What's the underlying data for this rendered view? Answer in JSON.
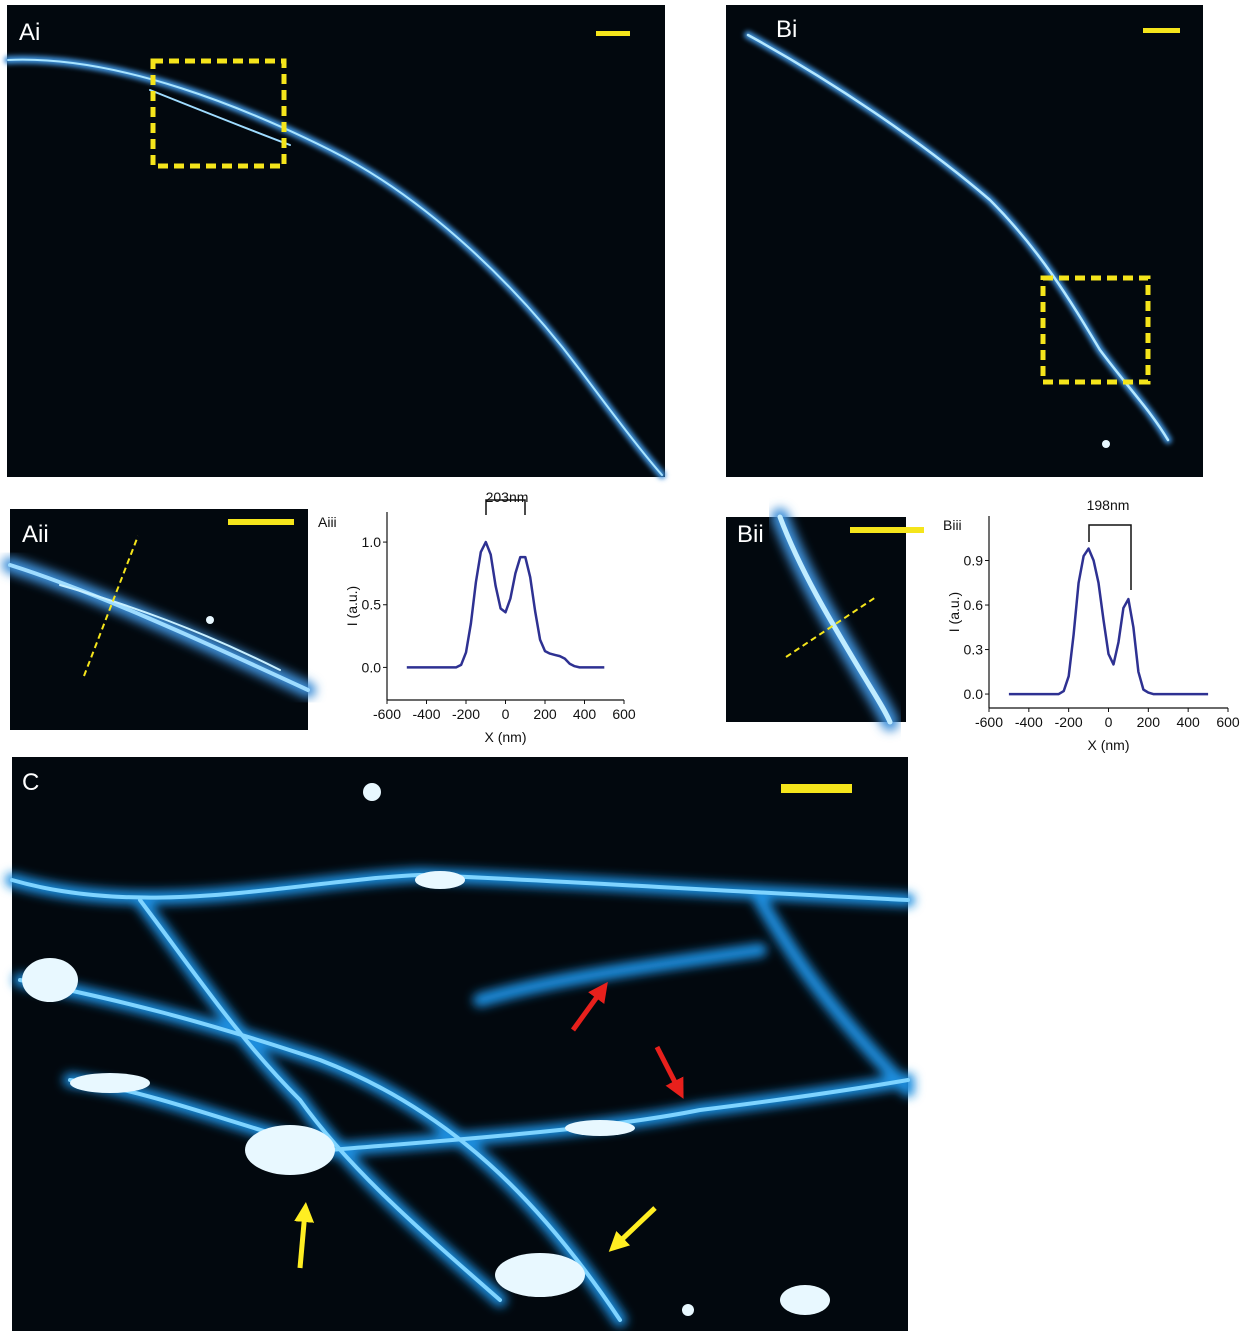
{
  "panels": {
    "ai": "Ai",
    "bi": "Bi",
    "aii": "Aii",
    "bii": "Bii",
    "c": "C"
  },
  "chart_data": [
    {
      "type": "line",
      "title": "Aiii",
      "annotation": "203nm",
      "x_label": "X (nm)",
      "y_label": "I (a.u.)",
      "color": "#2e3192",
      "x": [
        -500,
        -475,
        -450,
        -425,
        -400,
        -375,
        -350,
        -325,
        -300,
        -275,
        -250,
        -225,
        -200,
        -175,
        -150,
        -125,
        -100,
        -75,
        -50,
        -25,
        0,
        25,
        50,
        75,
        100,
        125,
        150,
        175,
        200,
        225,
        250,
        275,
        300,
        325,
        350,
        375,
        400,
        425,
        450,
        475,
        500
      ],
      "values": [
        0,
        0,
        0,
        0,
        0,
        0,
        0,
        0,
        0,
        0,
        0,
        0.02,
        0.12,
        0.35,
        0.68,
        0.92,
        1.0,
        0.9,
        0.65,
        0.47,
        0.44,
        0.55,
        0.75,
        0.88,
        0.88,
        0.72,
        0.45,
        0.22,
        0.13,
        0.11,
        0.1,
        0.09,
        0.07,
        0.03,
        0.01,
        0,
        0,
        0,
        0,
        0,
        0
      ],
      "xlim": [
        -600,
        600
      ],
      "xticks": [
        -600,
        -400,
        -200,
        0,
        200,
        400,
        600
      ],
      "ylim": [
        -0.26,
        1.24
      ],
      "yticks": [
        {
          "value": 0,
          "label": "0.0"
        },
        {
          "value": 0.5,
          "label": "0.5"
        },
        {
          "value": 1,
          "label": "1.0"
        }
      ]
    },
    {
      "type": "line",
      "title": "Biii",
      "annotation": "198nm",
      "x_label": "X (nm)",
      "y_label": "I (a.u.)",
      "color": "#2e3192",
      "x": [
        -500,
        -475,
        -450,
        -425,
        -400,
        -375,
        -350,
        -325,
        -300,
        -275,
        -250,
        -225,
        -200,
        -175,
        -150,
        -125,
        -100,
        -75,
        -50,
        -25,
        0,
        25,
        50,
        75,
        100,
        125,
        150,
        175,
        200,
        225,
        250,
        275,
        300,
        325,
        350,
        375,
        400,
        425,
        450,
        475,
        500
      ],
      "values": [
        0,
        0,
        0,
        0,
        0,
        0,
        0,
        0,
        0,
        0,
        0,
        0.02,
        0.12,
        0.4,
        0.75,
        0.93,
        0.98,
        0.9,
        0.75,
        0.5,
        0.27,
        0.2,
        0.35,
        0.58,
        0.64,
        0.45,
        0.15,
        0.03,
        0.01,
        0,
        0,
        0,
        0,
        0,
        0,
        0,
        0,
        0,
        0,
        0,
        0
      ],
      "xlim": [
        -600,
        600
      ],
      "xticks": [
        -600,
        -400,
        -200,
        0,
        200,
        400,
        600
      ],
      "ylim": [
        -0.094,
        1.2
      ],
      "yticks": [
        {
          "value": 0,
          "label": "0.0"
        },
        {
          "value": 0.3,
          "label": "0.3"
        },
        {
          "value": 0.6,
          "label": "0.6"
        },
        {
          "value": 0.9,
          "label": "0.9"
        }
      ]
    }
  ]
}
